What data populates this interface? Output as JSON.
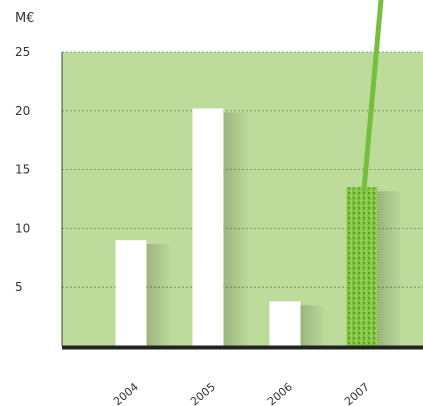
{
  "colors": {
    "plot_background": "#bddc9c",
    "bar_default": "#ffffff",
    "bar_highlight": "#7fc340",
    "trend_line": "#76bf3e",
    "axis": "#222222",
    "gridline": "#6f8a5a",
    "text": "#333333"
  },
  "chart_data": {
    "type": "bar",
    "unit_label": "M€",
    "categories": [
      "2004",
      "2005",
      "2006",
      "2007"
    ],
    "values": [
      9,
      20.2,
      3.8,
      13.5
    ],
    "ylim": [
      0,
      25
    ],
    "yticks": [
      5,
      10,
      15,
      20,
      25
    ],
    "highlight_category": "2007",
    "trend_arrow": "rising line from the 2007 bar off the top of the chart",
    "grid": true,
    "legend": "none"
  }
}
